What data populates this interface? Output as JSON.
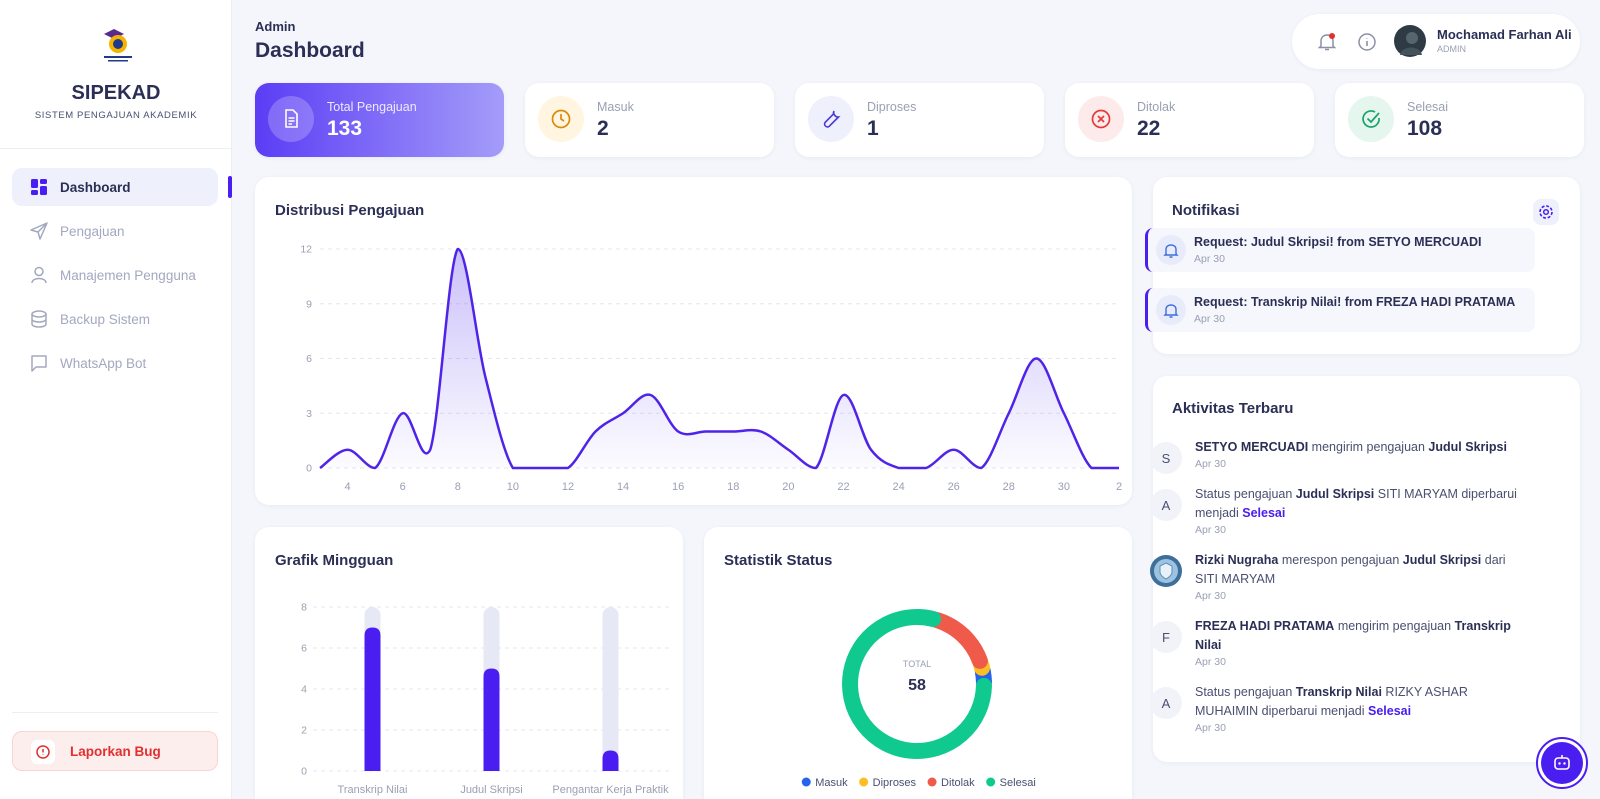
{
  "sidebar": {
    "brand": "SIPEKAD",
    "tagline": "SISTEM PENGAJUAN AKADEMIK",
    "menu": [
      "Dashboard",
      "Pengajuan",
      "Manajemen Pengguna",
      "Backup Sistem",
      "WhatsApp Bot"
    ],
    "report_bug": "Laporkan Bug"
  },
  "header": {
    "breadcrumb": "Admin",
    "title": "Dashboard"
  },
  "user": {
    "name": "Mochamad Farhan Ali",
    "role": "ADMIN"
  },
  "stats": [
    {
      "label": "Total Pengajuan",
      "value": 133
    },
    {
      "label": "Masuk",
      "value": 2
    },
    {
      "label": "Diproses",
      "value": 1
    },
    {
      "label": "Ditolak",
      "value": 22
    },
    {
      "label": "Selesai",
      "value": 108
    }
  ],
  "chart_data": [
    {
      "type": "line",
      "title": "Distribusi Pengajuan",
      "categories": [
        null,
        "4",
        null,
        "6",
        null,
        "8",
        null,
        "10",
        null,
        "12",
        null,
        "14",
        null,
        "16",
        null,
        "18",
        null,
        "20",
        null,
        "22",
        null,
        "24",
        null,
        "26",
        null,
        "28",
        null,
        "30",
        null,
        "2"
      ],
      "values": [
        0,
        1,
        0,
        3,
        1,
        12,
        5,
        0,
        0,
        0,
        2,
        3,
        4,
        2,
        2,
        2,
        2,
        1,
        0,
        4,
        1,
        0,
        0,
        1,
        0,
        3,
        6,
        3,
        0,
        0
      ],
      "color": "#4f23e8",
      "ylim": [
        0,
        12
      ],
      "yticks": [
        0,
        3,
        6,
        9,
        12
      ],
      "grid": true
    },
    {
      "type": "bar",
      "title": "Grafik Mingguan",
      "categories": [
        "Transkrip Nilai",
        "Judul Skripsi",
        "Pengantar Kerja Praktik"
      ],
      "values": [
        7,
        5,
        1
      ],
      "color": "#4a1df0",
      "ylim": [
        0,
        8
      ],
      "yticks": [
        0,
        2,
        4,
        6,
        8
      ],
      "grid": true
    },
    {
      "type": "pie",
      "title": "Statistik Status",
      "categories": [
        "Masuk",
        "Diproses",
        "Ditolak",
        "Selesai"
      ],
      "values": [
        2,
        1,
        9,
        46
      ],
      "colors": [
        "#2563eb",
        "#fbbf24",
        "#ef5a4a",
        "#10c98f"
      ],
      "center_label": "TOTAL",
      "total": 58
    }
  ],
  "notifications": {
    "title": "Notifikasi",
    "items": [
      {
        "title": "Request: Judul Skripsi! from SETYO MERCUADI",
        "date": "Apr 30"
      },
      {
        "title": "Request: Transkrip Nilai! from FREZA HADI PRATAMA",
        "date": "Apr 30"
      }
    ]
  },
  "activities": {
    "title": "Aktivitas Terbaru",
    "items": [
      {
        "avatar": "S",
        "parts": [
          {
            "text": "SETYO MERCUADI",
            "style": "bold"
          },
          {
            "text": " mengirim pengajuan "
          },
          {
            "text": "Judul Skripsi",
            "style": "bold"
          }
        ],
        "date": "Apr 30"
      },
      {
        "avatar": "A",
        "parts": [
          {
            "text": "Status pengajuan "
          },
          {
            "text": "Judul Skripsi",
            "style": "bold"
          },
          {
            "text": " SITI MARYAM diperbarui menjadi "
          },
          {
            "text": "Selesai",
            "style": "accent"
          }
        ],
        "date": "Apr 30"
      },
      {
        "parts": [
          {
            "text": "Rizki Nugraha",
            "style": "bold"
          },
          {
            "text": " merespon pengajuan "
          },
          {
            "text": "Judul Skripsi",
            "style": "bold"
          },
          {
            "text": " dari SITI MARYAM"
          }
        ],
        "date": "Apr 30"
      },
      {
        "avatar": "F",
        "parts": [
          {
            "text": "FREZA HADI PRATAMA",
            "style": "bold"
          },
          {
            "text": " mengirim pengajuan "
          },
          {
            "text": "Transkrip Nilai",
            "style": "bold"
          }
        ],
        "date": "Apr 30"
      },
      {
        "avatar": "A",
        "parts": [
          {
            "text": "Status pengajuan "
          },
          {
            "text": "Transkrip Nilai",
            "style": "bold"
          },
          {
            "text": " RIZKY ASHAR MUHAIMIN diperbarui menjadi "
          },
          {
            "text": "Selesai",
            "style": "accent"
          }
        ],
        "date": "Apr 30"
      }
    ]
  }
}
